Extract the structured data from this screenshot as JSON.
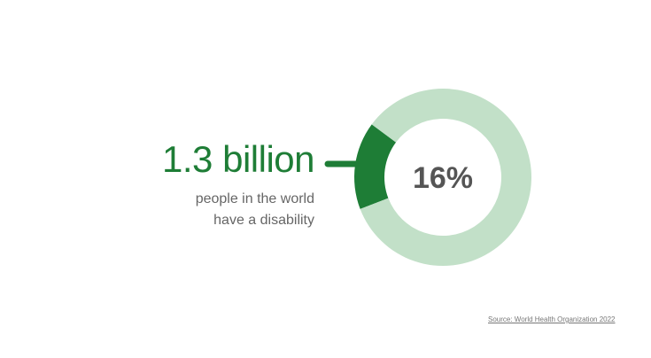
{
  "headline": "1.3 billion",
  "subtext": [
    "people in the world",
    "have a disability"
  ],
  "source": "Source: World Health Organization 2022",
  "colors": {
    "highlight": "#1e7d36",
    "remainder": "#c2e0c8",
    "center_text": "#555555"
  },
  "chart_data": {
    "type": "pie",
    "variant": "donut",
    "center_label": "16%",
    "slices": [
      {
        "label": "people with a disability",
        "value": 16,
        "color": "#1e7d36"
      },
      {
        "label": "rest",
        "value": 84,
        "color": "#c2e0c8"
      }
    ]
  }
}
